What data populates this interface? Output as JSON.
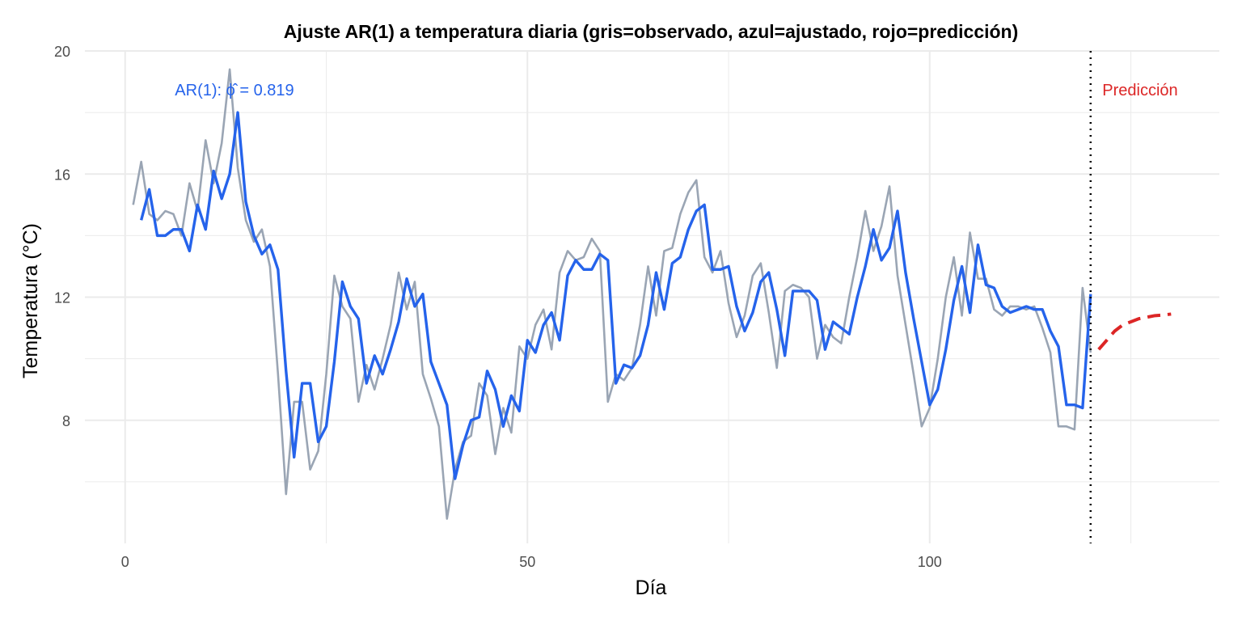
{
  "chart_data": {
    "type": "line",
    "title": "Ajuste AR(1) a temperatura diaria (gris=observado, azul=ajustado, rojo=predicción)",
    "xlabel": "Día",
    "ylabel": "Temperatura (°C)",
    "xlim": [
      -5,
      136
    ],
    "ylim": [
      4,
      20
    ],
    "x_ticks": [
      "0",
      "50",
      "100"
    ],
    "x_tick_values": [
      0,
      50,
      100
    ],
    "y_ticks": [
      "8",
      "12",
      "16",
      "20"
    ],
    "y_tick_values": [
      8,
      12,
      16,
      20
    ],
    "grid": true,
    "colors": {
      "observed": "#9aa5b4",
      "fitted": "#2563eb",
      "forecast": "#dc2626",
      "cutoff": "#000000",
      "grid": "#ebebeb"
    },
    "series": [
      {
        "key": "observed",
        "x_start": 1,
        "values": [
          15.0,
          16.4,
          14.7,
          14.5,
          14.8,
          14.7,
          14.0,
          15.7,
          14.8,
          17.1,
          15.7,
          17.0,
          19.4,
          16.2,
          14.5,
          13.8,
          14.2,
          13.0,
          9.5,
          5.6,
          8.6,
          8.6,
          6.4,
          7.0,
          9.5,
          12.7,
          11.7,
          11.3,
          8.6,
          9.8,
          9.0,
          10.0,
          11.1,
          12.8,
          11.6,
          12.5,
          9.5,
          8.7,
          7.8,
          4.8,
          6.4,
          7.3,
          7.5,
          9.2,
          8.8,
          6.9,
          8.4,
          7.6,
          10.4,
          10.0,
          11.1,
          11.6,
          10.3,
          12.8,
          13.5,
          13.2,
          13.3,
          13.9,
          13.5,
          8.6,
          9.5,
          9.3,
          9.7,
          11.1,
          13.0,
          11.4,
          13.5,
          13.6,
          14.7,
          15.4,
          15.8,
          13.3,
          12.8,
          13.5,
          11.8,
          10.7,
          11.4,
          12.7,
          13.1,
          11.5,
          9.7,
          12.2,
          12.4,
          12.3,
          12.0,
          10.0,
          11.1,
          10.7,
          10.5,
          12.0,
          13.3,
          14.8,
          13.5,
          14.3,
          15.6,
          12.7,
          11.1,
          9.5,
          7.8,
          8.4,
          10.0,
          12.0,
          13.3,
          11.4,
          14.1,
          12.6,
          12.6,
          11.6,
          11.4,
          11.7,
          11.7,
          11.6,
          11.7,
          11.0,
          10.2,
          7.8,
          7.8,
          7.7,
          12.3,
          10.2
        ]
      },
      {
        "key": "fitted",
        "x_start": 2,
        "values": [
          14.5,
          15.5,
          14.0,
          14.0,
          14.2,
          14.2,
          13.5,
          15.0,
          14.2,
          16.1,
          15.2,
          16.0,
          18.0,
          15.1,
          14.0,
          13.4,
          13.7,
          12.9,
          9.6,
          6.8,
          9.2,
          9.2,
          7.3,
          7.8,
          9.9,
          12.5,
          11.7,
          11.3,
          9.2,
          10.1,
          9.5,
          10.3,
          11.2,
          12.6,
          11.7,
          12.1,
          9.9,
          9.2,
          8.5,
          6.1,
          7.2,
          8.0,
          8.1,
          9.6,
          9.0,
          7.8,
          8.8,
          8.3,
          10.6,
          10.2,
          11.1,
          11.5,
          10.6,
          12.7,
          13.2,
          12.9,
          12.9,
          13.4,
          13.2,
          9.2,
          9.8,
          9.7,
          10.1,
          11.1,
          12.8,
          11.6,
          13.1,
          13.3,
          14.2,
          14.8,
          15.0,
          12.9,
          12.9,
          13.0,
          11.7,
          10.9,
          11.5,
          12.5,
          12.8,
          11.6,
          10.1,
          12.2,
          12.2,
          12.2,
          11.9,
          10.3,
          11.2,
          11.0,
          10.8,
          12.0,
          13.0,
          14.2,
          13.2,
          13.6,
          14.8,
          12.8,
          11.3,
          9.9,
          8.5,
          9.0,
          10.3,
          11.9,
          13.0,
          11.5,
          13.7,
          12.4,
          12.3,
          11.7,
          11.5,
          11.6,
          11.7,
          11.6,
          11.6,
          10.9,
          10.4,
          8.5,
          8.5,
          8.4,
          12.1
        ]
      },
      {
        "key": "forecast",
        "x_start": 121,
        "values": [
          10.3,
          10.6,
          10.9,
          11.1,
          11.2,
          11.3,
          11.35,
          11.4,
          11.42,
          11.45
        ]
      }
    ],
    "cutoff_x": 120,
    "annotations": {
      "phi": "AR(1): ϕ̂ = 0.819",
      "forecast_label": "Predicción"
    }
  }
}
